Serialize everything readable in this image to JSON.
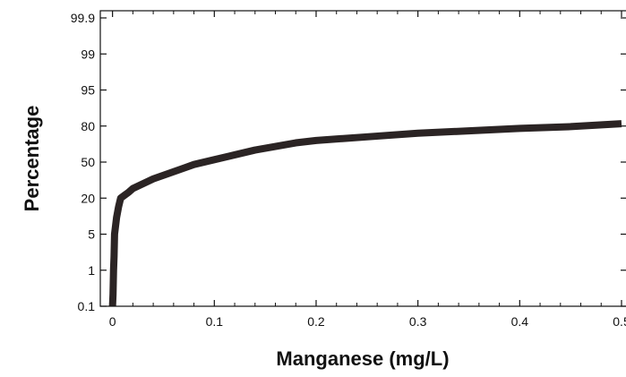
{
  "chart_data": {
    "type": "line",
    "title": "",
    "xlabel": "Manganese (mg/L)",
    "ylabel": "Percentage",
    "xlim": [
      -0.012,
      0.5
    ],
    "x_ticks": [
      0,
      0.1,
      0.2,
      0.3,
      0.4,
      0.5
    ],
    "x_tick_labels": [
      "0",
      "0.1",
      "0.2",
      "0.3",
      "0.4",
      "0.5"
    ],
    "y_scale": "probability",
    "y_ticks": [
      0.1,
      1,
      5,
      20,
      50,
      80,
      95,
      99,
      99.9
    ],
    "y_tick_labels": [
      "0.1",
      "1",
      "5",
      "20",
      "50",
      "80",
      "95",
      "99",
      "99.9"
    ],
    "grid": false,
    "legend": "none",
    "series": [
      {
        "color": "#2b2424",
        "points": [
          [
            0.0,
            0.1
          ],
          [
            0.0005,
            0.4
          ],
          [
            0.001,
            1.0
          ],
          [
            0.0015,
            2.5
          ],
          [
            0.002,
            5.0
          ],
          [
            0.003,
            8.5
          ],
          [
            0.004,
            12
          ],
          [
            0.006,
            16.5
          ],
          [
            0.008,
            20
          ],
          [
            0.012,
            22.5
          ],
          [
            0.016,
            25
          ],
          [
            0.02,
            28
          ],
          [
            0.03,
            32
          ],
          [
            0.04,
            36
          ],
          [
            0.05,
            39
          ],
          [
            0.06,
            42
          ],
          [
            0.07,
            45
          ],
          [
            0.08,
            48
          ],
          [
            0.1,
            52
          ],
          [
            0.12,
            56
          ],
          [
            0.14,
            60
          ],
          [
            0.16,
            63
          ],
          [
            0.18,
            66
          ],
          [
            0.2,
            68
          ],
          [
            0.25,
            71
          ],
          [
            0.3,
            74
          ],
          [
            0.35,
            76
          ],
          [
            0.4,
            78
          ],
          [
            0.45,
            79.5
          ],
          [
            0.5,
            81
          ]
        ]
      }
    ]
  }
}
